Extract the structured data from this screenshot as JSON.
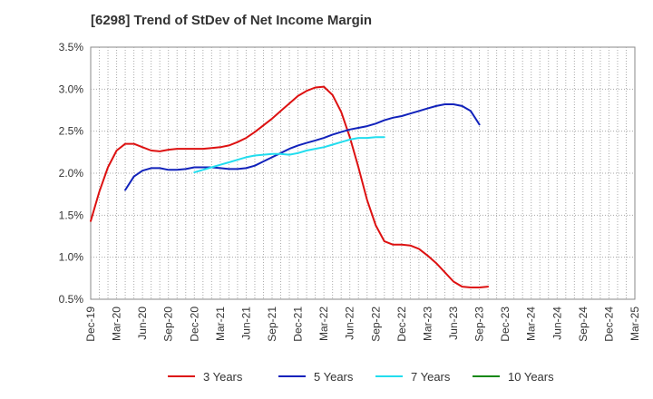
{
  "chart_data": {
    "type": "line",
    "title": "[6298]  Trend of StDev of Net Income Margin",
    "xlabel": "",
    "ylabel": "",
    "x_tick_labels": [
      "Dec-19",
      "Mar-20",
      "Jun-20",
      "Sep-20",
      "Dec-20",
      "Mar-21",
      "Jun-21",
      "Sep-21",
      "Dec-21",
      "Mar-22",
      "Jun-22",
      "Sep-22",
      "Dec-22",
      "Mar-23",
      "Jun-23",
      "Sep-23",
      "Dec-23",
      "Mar-24",
      "Jun-24",
      "Sep-24",
      "Dec-24",
      "Mar-25"
    ],
    "y_tick_labels": [
      "0.5%",
      "1.0%",
      "1.5%",
      "2.0%",
      "2.5%",
      "3.0%",
      "3.5%"
    ],
    "ylim": [
      0.5,
      3.5
    ],
    "y_ticks": [
      0.5,
      1.0,
      1.5,
      2.0,
      2.5,
      3.0,
      3.5
    ],
    "grid": true,
    "legend_position": "bottom",
    "series": [
      {
        "name": "3 Years",
        "color": "#dd1111",
        "start_index": 0,
        "values": [
          1.43,
          1.78,
          2.07,
          2.27,
          2.35,
          2.35,
          2.31,
          2.27,
          2.26,
          2.28,
          2.29,
          2.29,
          2.29,
          2.29,
          2.3,
          2.31,
          2.33,
          2.37,
          2.42,
          2.49,
          2.57,
          2.65,
          2.74,
          2.83,
          2.92,
          2.98,
          3.02,
          3.03,
          2.93,
          2.73,
          2.43,
          2.07,
          1.68,
          1.38,
          1.19,
          1.15,
          1.15,
          1.14,
          1.1,
          1.02,
          0.93,
          0.82,
          0.71,
          0.65,
          0.64,
          0.64,
          0.65
        ]
      },
      {
        "name": "5 Years",
        "color": "#1122bb",
        "start_index": 4,
        "values": [
          1.8,
          1.96,
          2.03,
          2.06,
          2.06,
          2.04,
          2.04,
          2.05,
          2.07,
          2.07,
          2.07,
          2.06,
          2.05,
          2.05,
          2.06,
          2.09,
          2.14,
          2.19,
          2.24,
          2.29,
          2.33,
          2.36,
          2.39,
          2.42,
          2.46,
          2.49,
          2.52,
          2.54,
          2.56,
          2.59,
          2.63,
          2.66,
          2.68,
          2.71,
          2.74,
          2.77,
          2.8,
          2.82,
          2.82,
          2.8,
          2.74,
          2.58
        ]
      },
      {
        "name": "7 Years",
        "color": "#22ddee",
        "start_index": 12,
        "values": [
          2.01,
          2.04,
          2.07,
          2.1,
          2.13,
          2.16,
          2.19,
          2.21,
          2.22,
          2.23,
          2.23,
          2.22,
          2.24,
          2.27,
          2.29,
          2.31,
          2.34,
          2.37,
          2.4,
          2.42,
          2.42,
          2.43,
          2.43
        ]
      },
      {
        "name": "10 Years",
        "color": "#118811",
        "start_index": 0,
        "values": []
      }
    ]
  }
}
